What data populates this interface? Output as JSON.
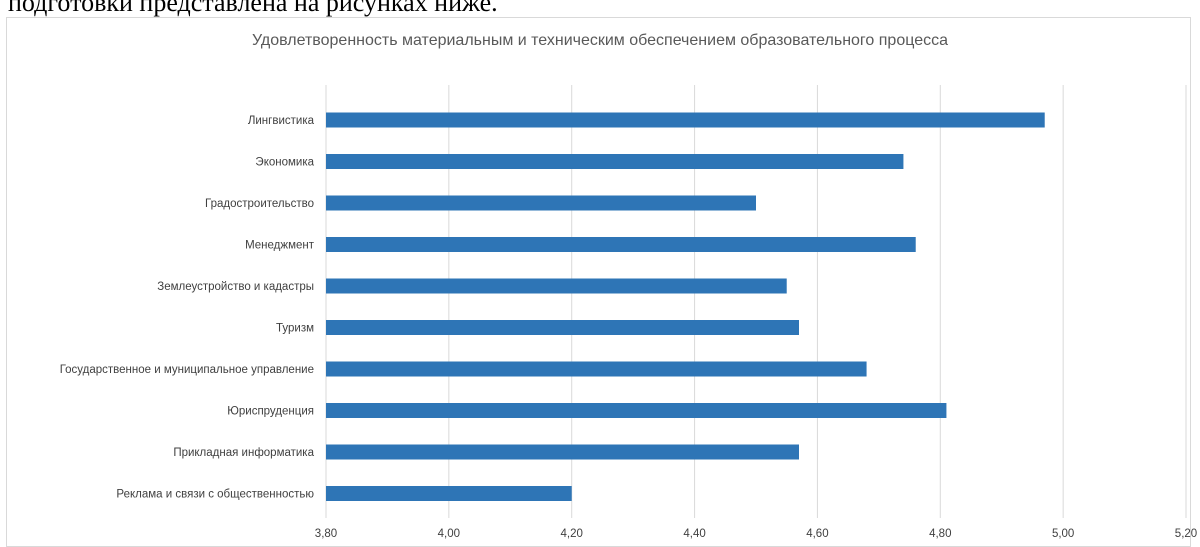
{
  "document": {
    "text": "подготовки представлена на рисунках ниже."
  },
  "chart_data": {
    "type": "bar",
    "orientation": "horizontal",
    "title": "Удовлетворенность материальным и техническим обеспечением образовательного процесса",
    "categories": [
      "Лингвистика",
      "Экономика",
      "Градостроительство",
      "Менеджмент",
      "Землеустройство и кадастры",
      "Туризм",
      "Государственное и муниципальное управление",
      "Юриспруденция",
      "Прикладная информатика",
      "Реклама и связи с общественностью"
    ],
    "values": [
      4.97,
      4.74,
      4.5,
      4.76,
      4.55,
      4.57,
      4.68,
      4.81,
      4.57,
      4.2
    ],
    "xlim": [
      3.8,
      5.2
    ],
    "ticks": [
      "3,80",
      "4,00",
      "4,20",
      "4,40",
      "4,60",
      "4,80",
      "5,00",
      "5,20"
    ],
    "tick_values": [
      3.8,
      4.0,
      4.2,
      4.4,
      4.6,
      4.8,
      5.0,
      5.2
    ],
    "bar_color": "#2e75b6",
    "gridline_color": "#d9d9d9",
    "grid": true
  }
}
